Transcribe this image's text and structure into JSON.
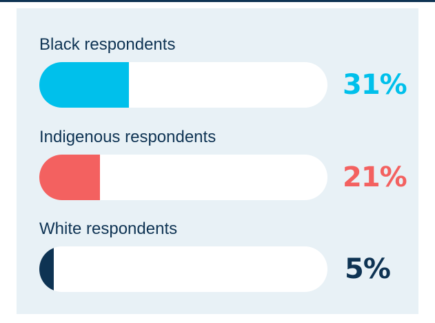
{
  "colors": {
    "background": "#e8f1f6",
    "track": "#ffffff",
    "rule": "#0e3353",
    "label_text": "#0e3353"
  },
  "chart_data": {
    "type": "bar",
    "orientation": "horizontal",
    "categories": [
      "Black respondents",
      "Indigenous respondents",
      "White respondents"
    ],
    "values": [
      31,
      21,
      5
    ],
    "value_labels": [
      "31%",
      "21%",
      "5%"
    ],
    "colors": [
      "#00c0eb",
      "#f36160",
      "#0e3353"
    ],
    "xlim": [
      0,
      100
    ],
    "grid": false,
    "legend": "none",
    "title": "",
    "xlabel": "",
    "ylabel": ""
  }
}
